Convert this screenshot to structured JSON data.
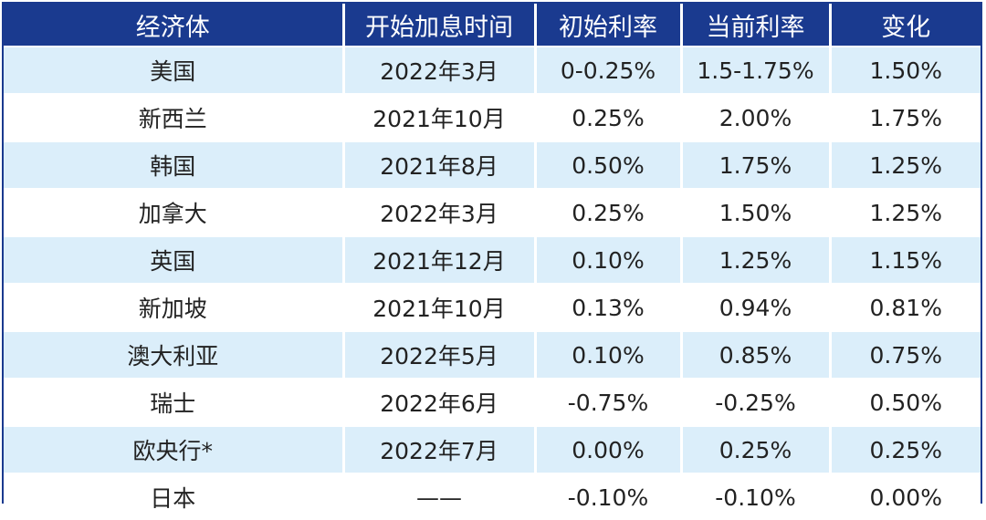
{
  "table": {
    "headers": [
      "经济体",
      "开始加息时间",
      "初始利率",
      "当前利率",
      "变化"
    ],
    "rows": [
      [
        "美国",
        "2022年3月",
        "0-0.25%",
        "1.5-1.75%",
        "1.50%"
      ],
      [
        "新西兰",
        "2021年10月",
        "0.25%",
        "2.00%",
        "1.75%"
      ],
      [
        "韩国",
        "2021年8月",
        "0.50%",
        "1.75%",
        "1.25%"
      ],
      [
        "加拿大",
        "2022年3月",
        "0.25%",
        "1.50%",
        "1.25%"
      ],
      [
        "英国",
        "2021年12月",
        "0.10%",
        "1.25%",
        "1.15%"
      ],
      [
        "新加坡",
        "2021年10月",
        "0.13%",
        "0.94%",
        "0.81%"
      ],
      [
        "澳大利亚",
        "2022年5月",
        "0.10%",
        "0.85%",
        "0.75%"
      ],
      [
        "瑞士",
        "2022年6月",
        "-0.75%",
        "-0.25%",
        "0.50%"
      ],
      [
        "欧央行*",
        "2022年7月",
        "0.00%",
        "0.25%",
        "0.25%"
      ],
      [
        "日本",
        "——",
        "-0.10%",
        "-0.10%",
        "0.00%"
      ]
    ]
  },
  "colors": {
    "header_bg": "#1a3a8f",
    "stripe_bg": "#dbeefa",
    "row_bg": "#ffffff"
  }
}
